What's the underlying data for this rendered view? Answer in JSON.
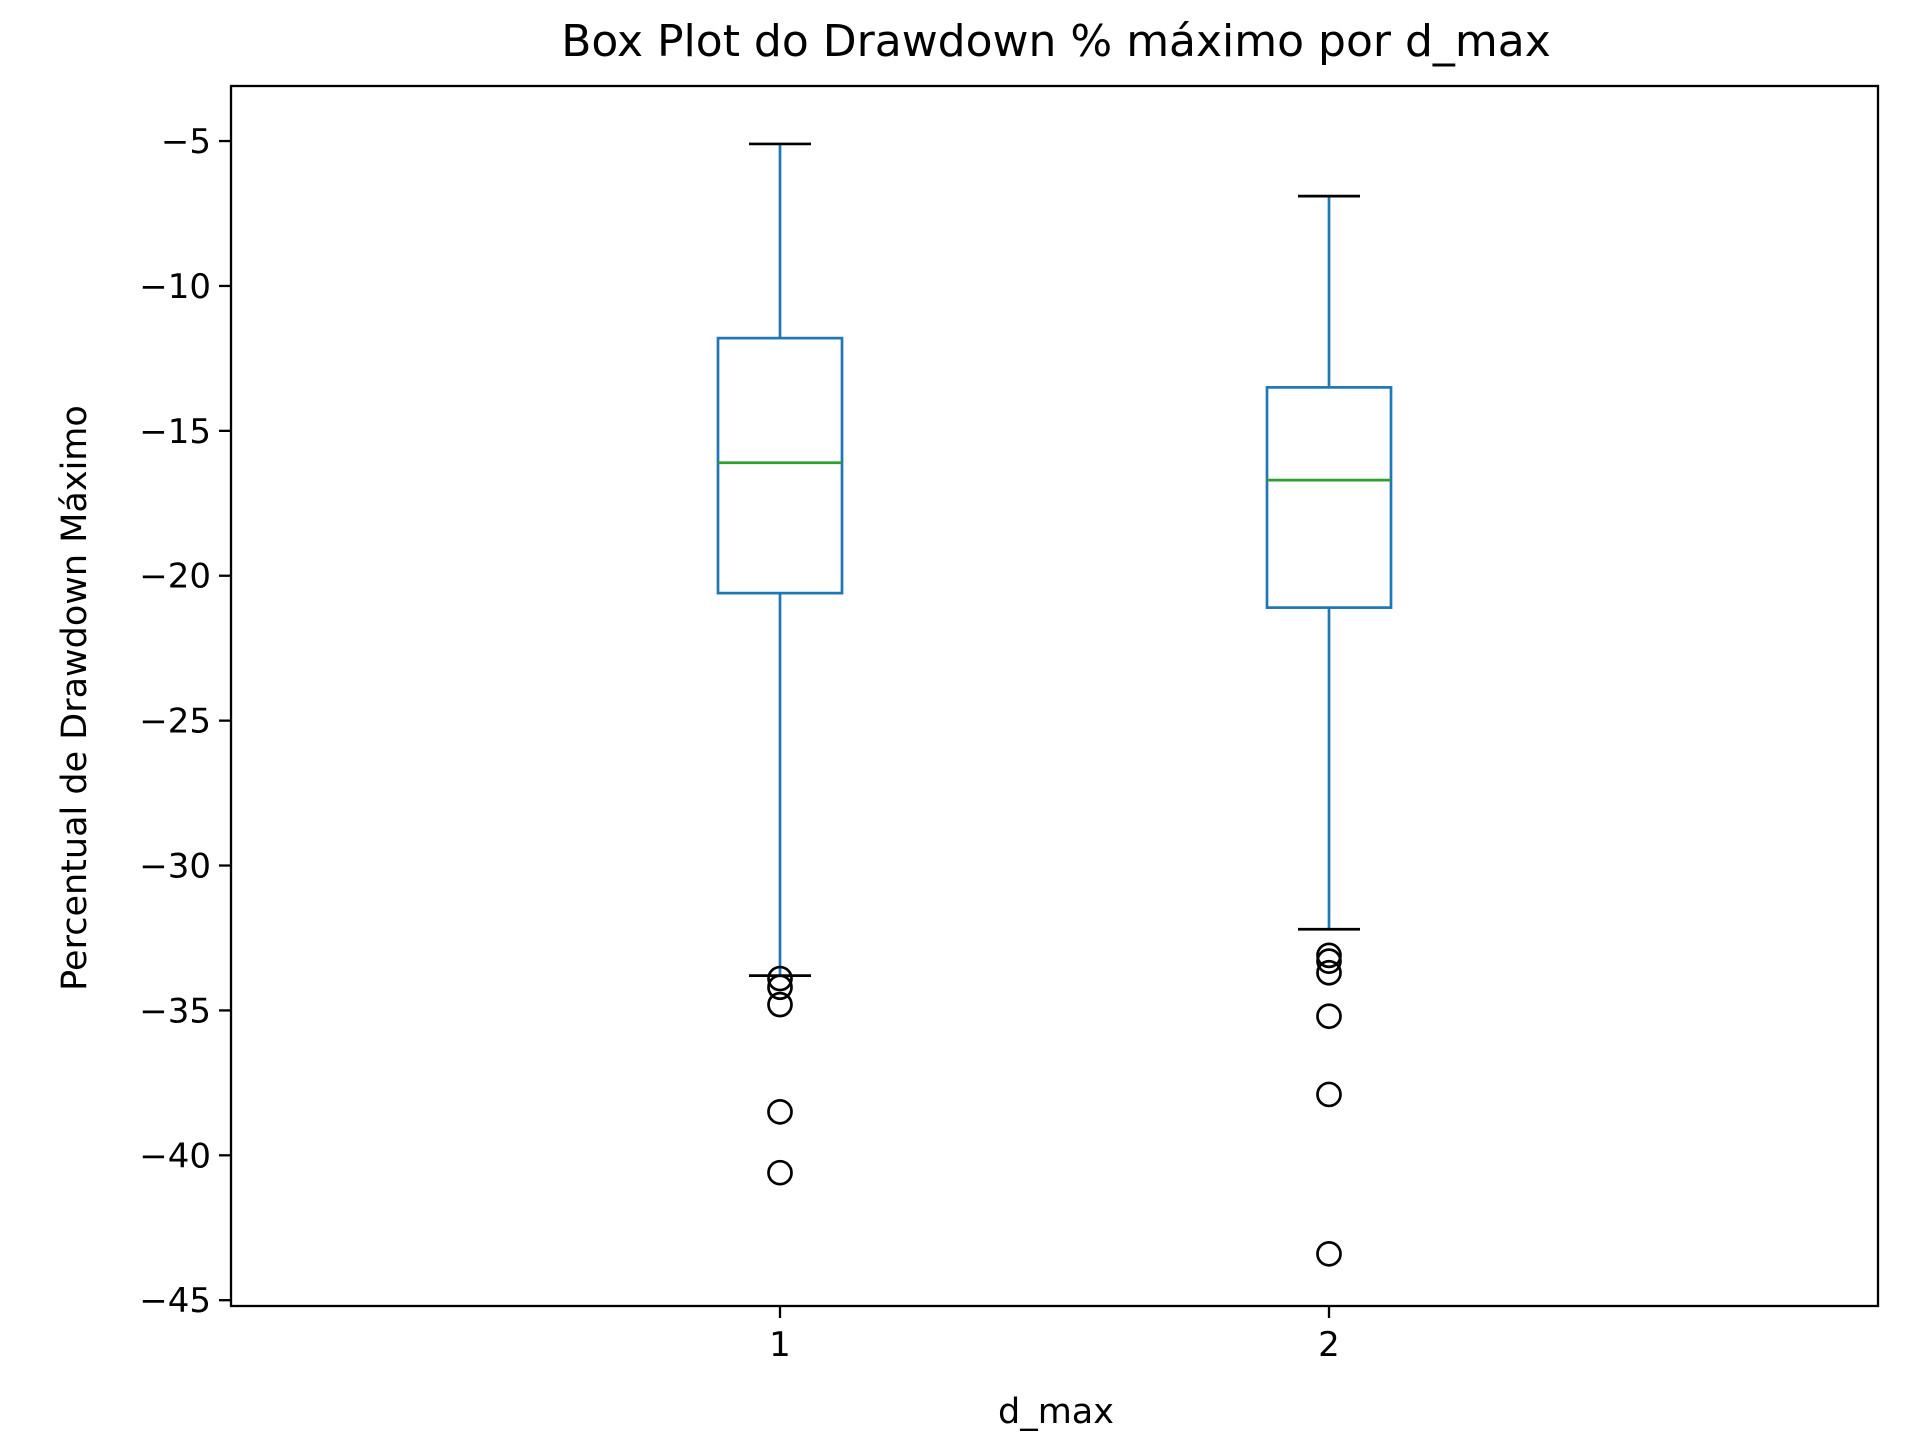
{
  "chart_data": {
    "type": "box",
    "title": "Box Plot do Drawdown % máximo por d_max",
    "xlabel": "d_max",
    "ylabel": "Percentual de Drawdown Máximo",
    "categories": [
      "1",
      "2"
    ],
    "ylim": [
      -45.2,
      -3.1
    ],
    "yticks": [
      -5,
      -10,
      -15,
      -20,
      -25,
      -30,
      -35,
      -40,
      -45
    ],
    "ytick_labels": [
      "−5",
      "−10",
      "−15",
      "−20",
      "−25",
      "−30",
      "−35",
      "−40",
      "−45"
    ],
    "grid": false,
    "colors": {
      "box": "#1f77b4",
      "median": "#2ca02c",
      "whisker": "#1f77b4",
      "cap": "#000000",
      "outlier": "#000000",
      "axes": "#000000",
      "background": "#ffffff"
    },
    "boxes": [
      {
        "category": "1",
        "whisker_high": -5.1,
        "q3": -11.8,
        "median": -16.1,
        "q1": -20.6,
        "whisker_low": -33.8,
        "outliers": [
          -33.9,
          -34.2,
          -34.8,
          -38.5,
          -40.6
        ]
      },
      {
        "category": "2",
        "whisker_high": -6.9,
        "q3": -13.5,
        "median": -16.7,
        "q1": -21.1,
        "whisker_low": -32.2,
        "outliers": [
          -33.1,
          -33.3,
          -33.7,
          -35.2,
          -37.9,
          -43.4
        ]
      }
    ]
  }
}
